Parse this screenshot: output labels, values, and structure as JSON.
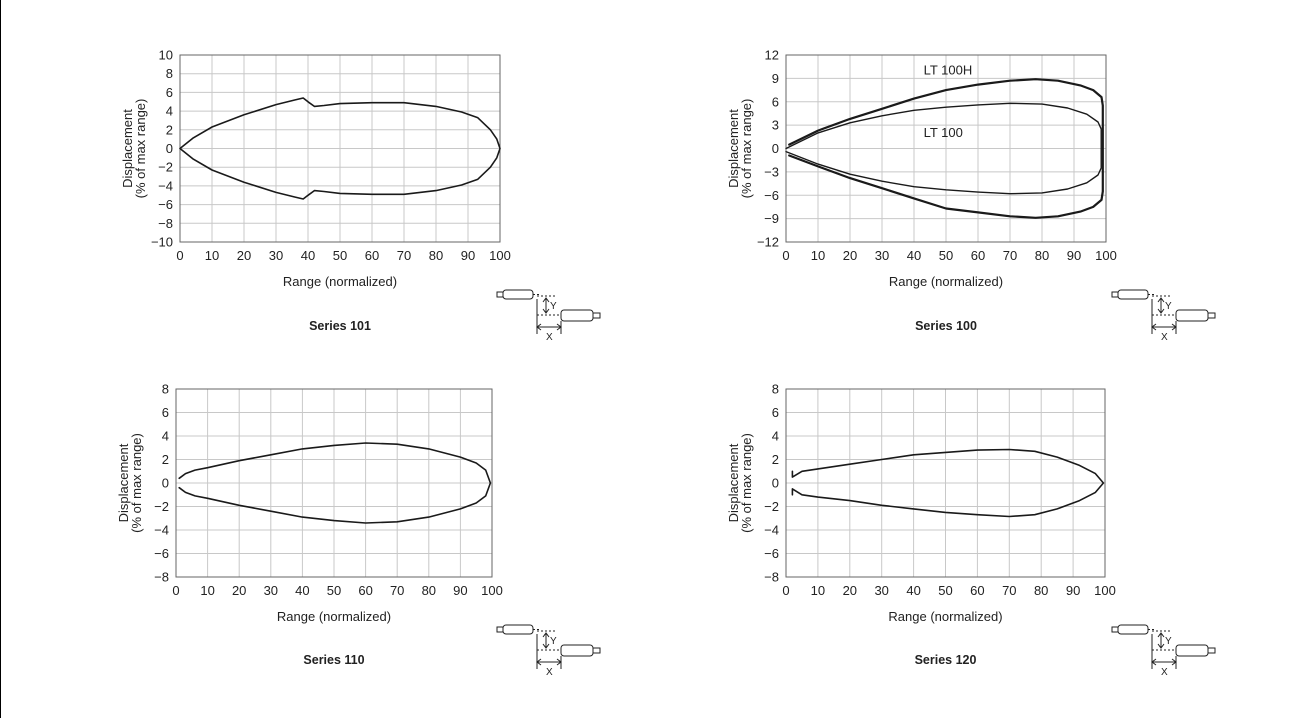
{
  "chart_data": [
    {
      "type": "line",
      "title": "Series 101",
      "xlabel": "Range (normalized)",
      "ylabel": "Displacement",
      "ylabel2": "(% of max range)",
      "xlim": [
        0,
        100
      ],
      "ylim": [
        -10,
        10
      ],
      "xticks": [
        0,
        10,
        20,
        30,
        40,
        50,
        60,
        70,
        80,
        90,
        100
      ],
      "yticks": [
        10,
        8,
        6,
        4,
        2,
        0,
        -2,
        -4,
        -6,
        -8,
        -10
      ],
      "ytick_labels": [
        "10",
        "8",
        "6",
        "4",
        "2",
        "0",
        "−2",
        "−4",
        "−6",
        "−8",
        "−10"
      ],
      "grid": true,
      "series": [
        {
          "name": "",
          "stroke": 1.6,
          "points": [
            [
              0,
              0
            ],
            [
              4,
              1.1
            ],
            [
              10,
              2.3
            ],
            [
              20,
              3.6
            ],
            [
              30,
              4.7
            ],
            [
              36,
              5.2
            ],
            [
              38.5,
              5.4
            ],
            [
              40,
              5.0
            ],
            [
              42,
              4.5
            ],
            [
              45,
              4.6
            ],
            [
              50,
              4.8
            ],
            [
              60,
              4.9
            ],
            [
              70,
              4.9
            ],
            [
              80,
              4.5
            ],
            [
              88,
              3.9
            ],
            [
              93,
              3.3
            ],
            [
              97,
              2.0
            ],
            [
              99,
              1.0
            ],
            [
              100,
              0
            ],
            [
              99,
              -1.0
            ],
            [
              97,
              -2.0
            ],
            [
              93,
              -3.3
            ],
            [
              88,
              -3.9
            ],
            [
              80,
              -4.5
            ],
            [
              70,
              -4.9
            ],
            [
              60,
              -4.9
            ],
            [
              50,
              -4.8
            ],
            [
              45,
              -4.6
            ],
            [
              42,
              -4.5
            ],
            [
              40,
              -5.0
            ],
            [
              38.5,
              -5.4
            ],
            [
              36,
              -5.2
            ],
            [
              30,
              -4.7
            ],
            [
              20,
              -3.6
            ],
            [
              10,
              -2.3
            ],
            [
              4,
              -1.1
            ],
            [
              0,
              0
            ]
          ]
        }
      ],
      "annotations": []
    },
    {
      "type": "line",
      "title": "Series 100",
      "xlabel": "Range (normalized)",
      "ylabel": "Displacement",
      "ylabel2": "(% of max range)",
      "xlim": [
        0,
        100
      ],
      "ylim": [
        -12,
        12
      ],
      "xticks": [
        0,
        10,
        20,
        30,
        40,
        50,
        60,
        70,
        80,
        90,
        100
      ],
      "yticks": [
        12,
        9,
        6,
        3,
        0,
        -3,
        -6,
        -9,
        -12
      ],
      "ytick_labels": [
        "12",
        "9",
        "6",
        "3",
        "0",
        "−3",
        "−6",
        "−9",
        "−12"
      ],
      "grid": true,
      "series": [
        {
          "name": "LT 100H",
          "stroke": 2.2,
          "points": [
            [
              1,
              0.5
            ],
            [
              10,
              2.3
            ],
            [
              20,
              3.8
            ],
            [
              30,
              5.1
            ],
            [
              40,
              6.4
            ],
            [
              50,
              7.5
            ],
            [
              60,
              8.2
            ],
            [
              70,
              8.7
            ],
            [
              78,
              8.9
            ],
            [
              85,
              8.7
            ],
            [
              92,
              8.1
            ],
            [
              96,
              7.5
            ],
            [
              98.6,
              6.6
            ],
            [
              99,
              5.5
            ],
            [
              99,
              -5.5
            ],
            [
              98.6,
              -6.6
            ],
            [
              96,
              -7.5
            ],
            [
              92,
              -8.1
            ],
            [
              85,
              -8.7
            ],
            [
              78,
              -8.9
            ],
            [
              70,
              -8.7
            ],
            [
              60,
              -8.2
            ],
            [
              50,
              -7.7
            ],
            [
              40,
              -6.4
            ],
            [
              30,
              -5.1
            ],
            [
              20,
              -3.8
            ],
            [
              10,
              -2.3
            ],
            [
              1,
              -0.9
            ]
          ]
        },
        {
          "name": "LT 100",
          "stroke": 1.4,
          "points": [
            [
              0,
              0
            ],
            [
              10,
              2.0
            ],
            [
              20,
              3.3
            ],
            [
              30,
              4.2
            ],
            [
              40,
              4.9
            ],
            [
              50,
              5.3
            ],
            [
              60,
              5.6
            ],
            [
              70,
              5.8
            ],
            [
              80,
              5.7
            ],
            [
              88,
              5.2
            ],
            [
              94,
              4.4
            ],
            [
              97.5,
              3.4
            ],
            [
              98.5,
              2.5
            ],
            [
              98.5,
              -2.5
            ],
            [
              97.5,
              -3.4
            ],
            [
              94,
              -4.4
            ],
            [
              88,
              -5.2
            ],
            [
              80,
              -5.7
            ],
            [
              70,
              -5.8
            ],
            [
              60,
              -5.6
            ],
            [
              50,
              -5.3
            ],
            [
              40,
              -4.9
            ],
            [
              30,
              -4.2
            ],
            [
              20,
              -3.3
            ],
            [
              10,
              -2.0
            ],
            [
              0,
              -0.4
            ]
          ]
        }
      ],
      "annotations": [
        {
          "text": "LT 100H",
          "x": 43,
          "y": 10
        },
        {
          "text": "LT 100",
          "x": 43,
          "y": 2
        }
      ]
    },
    {
      "type": "line",
      "title": "Series 110",
      "xlabel": "Range (normalized)",
      "ylabel": "Displacement",
      "ylabel2": "(% of max range)",
      "xlim": [
        0,
        100
      ],
      "ylim": [
        -8,
        8
      ],
      "xticks": [
        0,
        10,
        20,
        30,
        40,
        50,
        60,
        70,
        80,
        90,
        100
      ],
      "yticks": [
        8,
        6,
        4,
        2,
        0,
        -2,
        -4,
        -6,
        -8
      ],
      "ytick_labels": [
        "8",
        "6",
        "4",
        "2",
        "0",
        "−2",
        "−4",
        "−6",
        "−8"
      ],
      "grid": true,
      "series": [
        {
          "name": "",
          "stroke": 1.6,
          "points": [
            [
              1,
              0.4
            ],
            [
              3,
              0.8
            ],
            [
              6,
              1.1
            ],
            [
              10,
              1.3
            ],
            [
              20,
              1.9
            ],
            [
              30,
              2.4
            ],
            [
              40,
              2.9
            ],
            [
              50,
              3.2
            ],
            [
              60,
              3.4
            ],
            [
              70,
              3.3
            ],
            [
              80,
              2.9
            ],
            [
              90,
              2.2
            ],
            [
              95,
              1.7
            ],
            [
              98,
              1.1
            ],
            [
              99.5,
              0
            ],
            [
              98,
              -1.1
            ],
            [
              95,
              -1.7
            ],
            [
              90,
              -2.2
            ],
            [
              80,
              -2.9
            ],
            [
              70,
              -3.3
            ],
            [
              60,
              -3.4
            ],
            [
              50,
              -3.2
            ],
            [
              40,
              -2.9
            ],
            [
              30,
              -2.4
            ],
            [
              20,
              -1.9
            ],
            [
              10,
              -1.3
            ],
            [
              6,
              -1.1
            ],
            [
              3,
              -0.8
            ],
            [
              1,
              -0.4
            ]
          ]
        }
      ],
      "annotations": []
    },
    {
      "type": "line",
      "title": "Series 120",
      "xlabel": "Range (normalized)",
      "ylabel": "Displacement",
      "ylabel2": "(% of max range)",
      "xlim": [
        0,
        100
      ],
      "ylim": [
        -8,
        8
      ],
      "xticks": [
        0,
        10,
        20,
        30,
        40,
        50,
        60,
        70,
        80,
        90,
        100
      ],
      "yticks": [
        8,
        6,
        4,
        2,
        0,
        -2,
        -4,
        -6,
        -8
      ],
      "ytick_labels": [
        "8",
        "6",
        "4",
        "2",
        "0",
        "−2",
        "−4",
        "−6",
        "−8"
      ],
      "grid": true,
      "series": [
        {
          "name": "",
          "stroke": 1.6,
          "points": [
            [
              2,
              1.0
            ],
            [
              2,
              0.5
            ],
            [
              5,
              1.0
            ],
            [
              10,
              1.2
            ],
            [
              20,
              1.6
            ],
            [
              30,
              2.0
            ],
            [
              40,
              2.4
            ],
            [
              50,
              2.6
            ],
            [
              60,
              2.8
            ],
            [
              70,
              2.85
            ],
            [
              78,
              2.7
            ],
            [
              85,
              2.2
            ],
            [
              92,
              1.5
            ],
            [
              97,
              0.8
            ],
            [
              99.5,
              0
            ],
            [
              97,
              -0.8
            ],
            [
              92,
              -1.5
            ],
            [
              85,
              -2.2
            ],
            [
              78,
              -2.7
            ],
            [
              70,
              -2.85
            ],
            [
              60,
              -2.7
            ],
            [
              50,
              -2.5
            ],
            [
              40,
              -2.2
            ],
            [
              30,
              -1.9
            ],
            [
              20,
              -1.5
            ],
            [
              10,
              -1.2
            ],
            [
              5,
              -1.0
            ],
            [
              2,
              -0.5
            ],
            [
              2,
              -1.0
            ]
          ]
        }
      ],
      "annotations": []
    }
  ],
  "diagram": {
    "y_label": "Y",
    "x_label": "X"
  }
}
